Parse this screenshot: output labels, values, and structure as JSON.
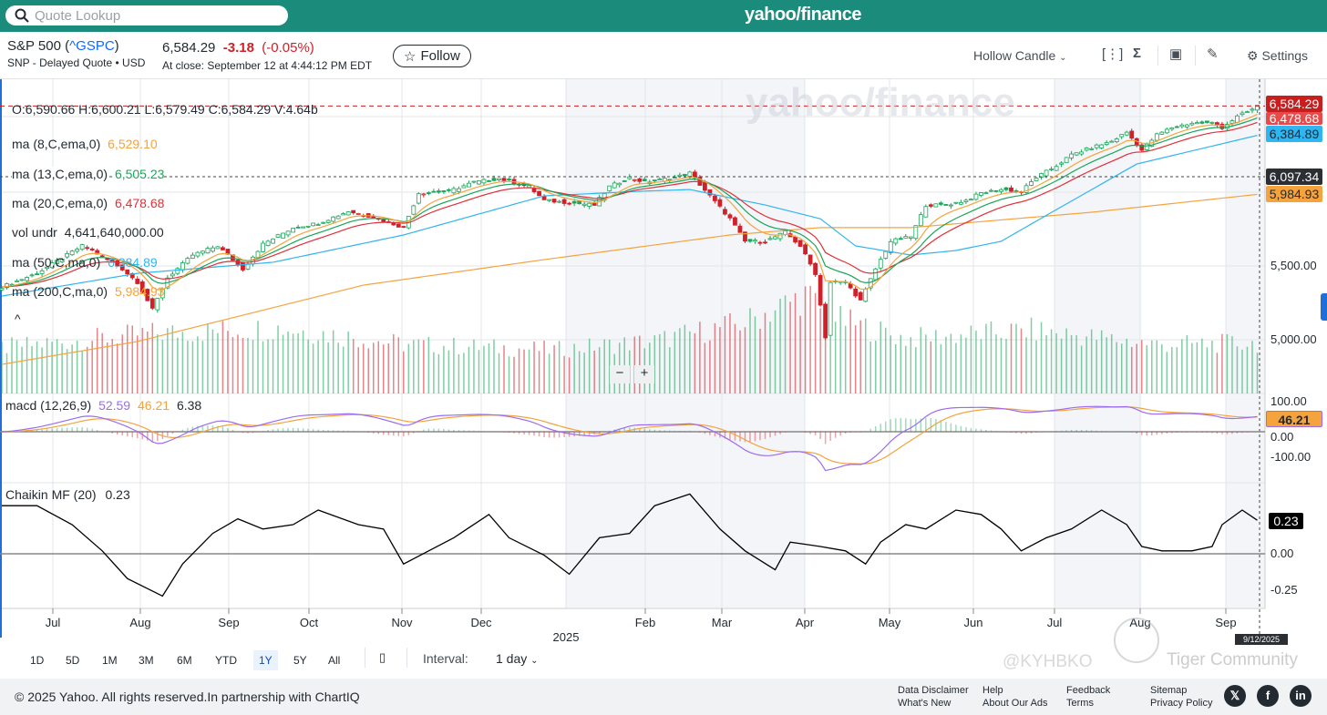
{
  "header": {
    "search_placeholder": "Quote Lookup",
    "logo": "yahoo/finance"
  },
  "quote": {
    "name": "S&P 500 (",
    "symbol": "^GSPC",
    "name_end": ")",
    "exchange": "SNP - Delayed Quote • USD",
    "price": "6,584.29",
    "change": "-3.18",
    "change_pct": "(-0.05%)",
    "close_time": "At close: September 12 at 4:44:12 PM EDT",
    "follow": "Follow"
  },
  "toolbar": {
    "chart_type": "Hollow Candle",
    "settings": "Settings"
  },
  "legend": {
    "ohlc": "O:6,590.66  H:6,600.21  L:6,579.49  C:6,584.29  V:4.64b",
    "ma8": {
      "label": "ma (8,C,ema,0)",
      "value": "6,529.10"
    },
    "ma13": {
      "label": "ma (13,C,ema,0)",
      "value": "6,505.23"
    },
    "ma20": {
      "label": "ma (20,C,ema,0)",
      "value": "6,478.68"
    },
    "vol": {
      "label": "vol undr",
      "value": "4,641,640,000.00"
    },
    "ma50": {
      "label": "ma (50,C,ma,0)",
      "value": "6,384.89"
    },
    "ma200": {
      "label": "ma (200,C,ma,0)",
      "value": "5,984.93"
    },
    "macd": {
      "label": "macd (12,26,9)",
      "macd": "52.59",
      "signal": "46.21",
      "hist": "6.38"
    },
    "cmf": {
      "label": "Chaikin MF (20)",
      "value": "0.23"
    }
  },
  "price_tags": {
    "last": "6,584.29",
    "ma20": "6,478.68",
    "ma50": "6,384.89",
    "crosshair": "6,097.34",
    "ma200": "5,984.93",
    "macd_signal": "46.21",
    "cmf": "0.23"
  },
  "axis": {
    "p5500": "5,500.00",
    "p5000": "5,000.00",
    "m100": "100.00",
    "m0": "0.00",
    "mneg100": "-100.00",
    "c0": "0.00",
    "cneg": "-0.25"
  },
  "months": [
    "Jul",
    "Aug",
    "Sep",
    "Oct",
    "Nov",
    "Dec",
    "Feb",
    "Mar",
    "Apr",
    "May",
    "Jun",
    "Jul",
    "Aug",
    "Sep"
  ],
  "year_label": "2025",
  "crosshair_date": "9/12/2025",
  "ranges": [
    "1D",
    "5D",
    "1M",
    "3M",
    "6M",
    "YTD",
    "1Y",
    "5Y",
    "All"
  ],
  "active_range": "1Y",
  "interval": {
    "label": "Interval:",
    "value": "1 day"
  },
  "footer": {
    "copyright": "© 2025 Yahoo. All rights reserved.In partnership with ChartIQ",
    "links": [
      "Data Disclaimer",
      "What's New",
      "Help",
      "About Our Ads",
      "Feedback",
      "Terms",
      "Sitemap",
      "Privacy Policy"
    ]
  },
  "watermarks": {
    "tiger": "Tiger Community",
    "handle": "@KYHBKO"
  },
  "colors": {
    "up": "#1aa55a",
    "down": "#d0202a",
    "ma8": "#f5a33c",
    "ma13": "#1aa55a",
    "ma20": "#e0303a",
    "ma50": "#2fb5ef",
    "ma200": "#f5a33c",
    "macd": "#9b6cf0",
    "signal": "#f5a33c"
  },
  "chart_data": {
    "type": "candlestick",
    "x_unit": "trading day",
    "ylim": [
      4700,
      6700
    ],
    "closes": [
      [
        0,
        5358
      ],
      [
        7,
        5450
      ],
      [
        16,
        5636
      ],
      [
        18,
        5605
      ],
      [
        24,
        5480
      ],
      [
        27,
        5390
      ],
      [
        30,
        5204
      ],
      [
        33,
        5420
      ],
      [
        38,
        5574
      ],
      [
        43,
        5636
      ],
      [
        48,
        5480
      ],
      [
        52,
        5648
      ],
      [
        58,
        5760
      ],
      [
        63,
        5790
      ],
      [
        69,
        5870
      ],
      [
        74,
        5833
      ],
      [
        80,
        5760
      ],
      [
        83,
        5994
      ],
      [
        89,
        6006
      ],
      [
        94,
        6068
      ],
      [
        99,
        6092
      ],
      [
        105,
        6037
      ],
      [
        108,
        5944
      ],
      [
        112,
        5932
      ],
      [
        118,
        5913
      ],
      [
        121,
        6037
      ],
      [
        125,
        6099
      ],
      [
        128,
        6068
      ],
      [
        134,
        6099
      ],
      [
        137,
        6130
      ],
      [
        141,
        5975
      ],
      [
        145,
        5821
      ],
      [
        148,
        5667
      ],
      [
        152,
        5667
      ],
      [
        156,
        5728
      ],
      [
        159,
        5636
      ],
      [
        162,
        5450
      ],
      [
        164,
        5019
      ],
      [
        165,
        5389
      ],
      [
        168,
        5389
      ],
      [
        171,
        5265
      ],
      [
        174,
        5480
      ],
      [
        177,
        5667
      ],
      [
        181,
        5698
      ],
      [
        184,
        5913
      ],
      [
        188,
        5913
      ],
      [
        192,
        5944
      ],
      [
        195,
        5994
      ],
      [
        199,
        6018
      ],
      [
        203,
        6006
      ],
      [
        206,
        6099
      ],
      [
        210,
        6179
      ],
      [
        213,
        6253
      ],
      [
        217,
        6302
      ],
      [
        221,
        6345
      ],
      [
        224,
        6407
      ],
      [
        227,
        6284
      ],
      [
        230,
        6389
      ],
      [
        233,
        6438
      ],
      [
        237,
        6469
      ],
      [
        241,
        6469
      ],
      [
        243,
        6438
      ],
      [
        246,
        6512
      ],
      [
        249,
        6561
      ],
      [
        250,
        6584
      ]
    ],
    "ma50": [
      [
        0,
        5296
      ],
      [
        27,
        5450
      ],
      [
        54,
        5525
      ],
      [
        80,
        5710
      ],
      [
        108,
        5975
      ],
      [
        127,
        6006
      ],
      [
        137,
        6018
      ],
      [
        152,
        5913
      ],
      [
        163,
        5820
      ],
      [
        170,
        5636
      ],
      [
        181,
        5574
      ],
      [
        190,
        5605
      ],
      [
        199,
        5667
      ],
      [
        210,
        5882
      ],
      [
        226,
        6191
      ],
      [
        250,
        6385
      ]
    ],
    "ma200": [
      [
        0,
        4833
      ],
      [
        27,
        4988
      ],
      [
        72,
        5370
      ],
      [
        108,
        5543
      ],
      [
        145,
        5710
      ],
      [
        163,
        5760
      ],
      [
        181,
        5760
      ],
      [
        217,
        5864
      ],
      [
        250,
        5985
      ]
    ],
    "volume_b": [
      [
        0,
        4.2
      ],
      [
        30,
        5.5
      ],
      [
        56,
        6
      ],
      [
        80,
        4.5
      ],
      [
        110,
        4
      ],
      [
        130,
        4.8
      ],
      [
        148,
        6.5
      ],
      [
        160,
        9
      ],
      [
        165,
        7
      ],
      [
        180,
        5
      ],
      [
        205,
        5.8
      ],
      [
        230,
        4.5
      ],
      [
        250,
        4.6
      ]
    ],
    "cmf": [
      [
        0,
        0.33
      ],
      [
        7,
        0.33
      ],
      [
        14,
        0.2
      ],
      [
        20,
        0.02
      ],
      [
        25,
        -0.17
      ],
      [
        32,
        -0.29
      ],
      [
        36,
        -0.07
      ],
      [
        42,
        0.14
      ],
      [
        47,
        0.24
      ],
      [
        52,
        0.17
      ],
      [
        58,
        0.2
      ],
      [
        63,
        0.3
      ],
      [
        71,
        0.2
      ],
      [
        76,
        0.17
      ],
      [
        80,
        -0.07
      ],
      [
        85,
        0.02
      ],
      [
        90,
        0.11
      ],
      [
        97,
        0.27
      ],
      [
        101,
        0.11
      ],
      [
        108,
        -0.01
      ],
      [
        113,
        -0.14
      ],
      [
        119,
        0.11
      ],
      [
        125,
        0.14
      ],
      [
        130,
        0.33
      ],
      [
        137,
        0.41
      ],
      [
        143,
        0.17
      ],
      [
        148,
        0.02
      ],
      [
        154,
        -0.11
      ],
      [
        157,
        0.08
      ],
      [
        163,
        0.05
      ],
      [
        168,
        0.02
      ],
      [
        172,
        -0.07
      ],
      [
        175,
        0.08
      ],
      [
        180,
        0.2
      ],
      [
        184,
        0.17
      ],
      [
        190,
        0.3
      ],
      [
        195,
        0.27
      ],
      [
        199,
        0.17
      ],
      [
        203,
        0.02
      ],
      [
        208,
        0.11
      ],
      [
        213,
        0.17
      ],
      [
        219,
        0.3
      ],
      [
        224,
        0.2
      ],
      [
        227,
        0.05
      ],
      [
        231,
        0.02
      ],
      [
        237,
        0.02
      ],
      [
        241,
        0.05
      ],
      [
        243,
        0.2
      ],
      [
        247,
        0.3
      ],
      [
        250,
        0.23
      ]
    ]
  }
}
